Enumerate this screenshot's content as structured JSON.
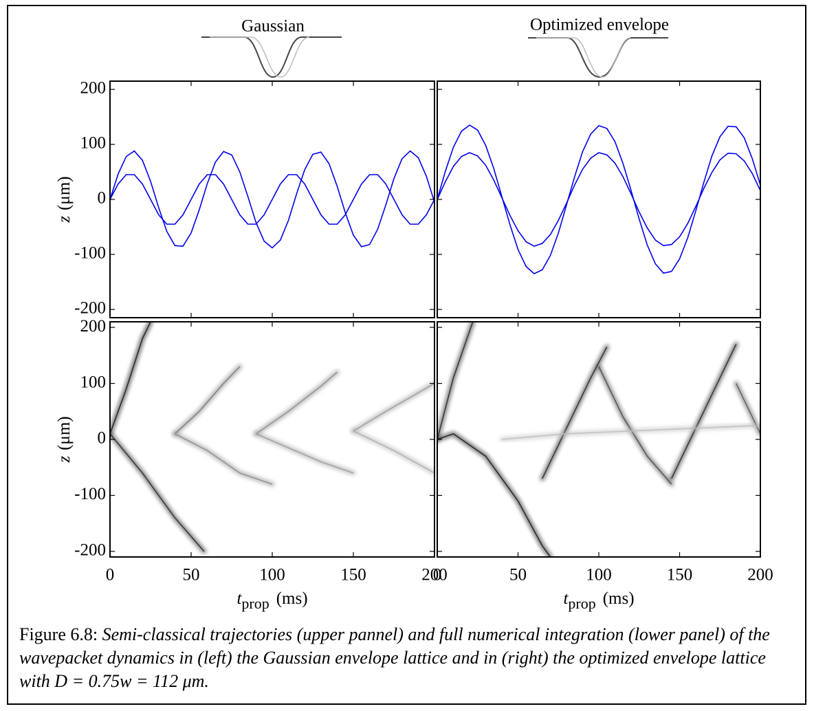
{
  "chart_data": [
    {
      "type": "line",
      "title": "Gaussian",
      "x": [
        0,
        5,
        10,
        15,
        20,
        25,
        30,
        35,
        40,
        45,
        50,
        55,
        60,
        65,
        70,
        75,
        80,
        85,
        90,
        95,
        100,
        105,
        110,
        115,
        120,
        125,
        130,
        135,
        140,
        145,
        150,
        155,
        160,
        165,
        170,
        175,
        180,
        185,
        190,
        195,
        200
      ],
      "series": [
        {
          "color": "#0000ee",
          "values": [
            0,
            46,
            78,
            88,
            71,
            33,
            -15,
            -58,
            -84,
            -85,
            -61,
            -19,
            29,
            68,
            87,
            81,
            50,
            5,
            -42,
            -76,
            -88,
            -74,
            -38,
            10,
            54,
            82,
            86,
            65,
            24,
            -24,
            -65,
            -86,
            -82,
            -54,
            -10,
            38,
            74,
            88,
            76,
            42,
            -5
          ]
        },
        {
          "color": "#0000ee",
          "values": [
            0,
            28,
            45,
            45,
            28,
            0,
            -28,
            -45,
            -45,
            -28,
            0,
            28,
            45,
            45,
            28,
            0,
            -28,
            -45,
            -45,
            -28,
            0,
            28,
            45,
            45,
            28,
            0,
            -28,
            -45,
            -45,
            -28,
            0,
            28,
            45,
            45,
            28,
            0,
            -28,
            -45,
            -45,
            -28,
            0
          ]
        }
      ],
      "xlim": [
        0,
        200
      ],
      "xticks": [
        0,
        50,
        100,
        150,
        200
      ],
      "xtick_labels": false,
      "ylim": [
        -215,
        215
      ],
      "yticks": [
        -200,
        -100,
        0,
        100,
        200
      ],
      "ytick_labels": true,
      "ylabel": {
        "var": "z",
        "unit": "(μm)"
      }
    },
    {
      "type": "line",
      "title": "Optimized envelope",
      "x": [
        0,
        5,
        10,
        15,
        20,
        25,
        30,
        35,
        40,
        45,
        50,
        55,
        60,
        65,
        70,
        75,
        80,
        85,
        90,
        95,
        100,
        105,
        110,
        115,
        120,
        125,
        130,
        135,
        140,
        145,
        150,
        155,
        160,
        165,
        170,
        175,
        180,
        185,
        190,
        195,
        200
      ],
      "series": [
        {
          "color": "#0000ee",
          "values": [
            0,
            51,
            95,
            124,
            135,
            126,
            98,
            56,
            5,
            -46,
            -91,
            -122,
            -135,
            -128,
            -102,
            -61,
            -10,
            41,
            87,
            119,
            134,
            129,
            105,
            65,
            16,
            -36,
            -83,
            -117,
            -134,
            -131,
            -108,
            -70,
            -21,
            31,
            79,
            114,
            133,
            132,
            112,
            74,
            26
          ]
        },
        {
          "color": "#0000ee",
          "values": [
            0,
            32,
            60,
            78,
            85,
            79,
            62,
            35,
            3,
            -29,
            -57,
            -77,
            -85,
            -80,
            -64,
            -38,
            -7,
            26,
            55,
            75,
            85,
            81,
            66,
            41,
            10,
            -23,
            -52,
            -74,
            -84,
            -82,
            -68,
            -44,
            -13,
            20,
            49,
            72,
            84,
            83,
            70,
            47,
            16
          ]
        }
      ],
      "xlim": [
        0,
        200
      ],
      "xticks": [
        0,
        50,
        100,
        150,
        200
      ],
      "xtick_labels": false,
      "ylim": [
        -215,
        215
      ],
      "yticks": [
        -200,
        -100,
        0,
        100,
        200
      ],
      "ytick_labels": false
    },
    {
      "type": "density",
      "series": [
        {
          "color": "#111111",
          "x": [
            0,
            10,
            20,
            25
          ],
          "values": [
            10,
            90,
            180,
            210
          ]
        },
        {
          "color": "#222222",
          "x": [
            0,
            20,
            40,
            58
          ],
          "values": [
            10,
            -60,
            -140,
            -200
          ]
        },
        {
          "color": "#777777",
          "x": [
            40,
            55,
            70,
            80
          ],
          "values": [
            10,
            50,
            100,
            130
          ]
        },
        {
          "color": "#888888",
          "x": [
            40,
            60,
            80,
            100
          ],
          "values": [
            10,
            -20,
            -60,
            -80
          ]
        },
        {
          "color": "#888888",
          "x": [
            90,
            110,
            130,
            140
          ],
          "values": [
            10,
            50,
            95,
            120
          ]
        },
        {
          "color": "#999999",
          "x": [
            90,
            110,
            130,
            150
          ],
          "values": [
            10,
            -15,
            -40,
            -60
          ]
        },
        {
          "color": "#999999",
          "x": [
            150,
            170,
            200
          ],
          "values": [
            15,
            50,
            100
          ]
        },
        {
          "color": "#aaaaaa",
          "x": [
            150,
            175,
            200
          ],
          "values": [
            15,
            -20,
            -60
          ]
        }
      ],
      "xlim": [
        0,
        200
      ],
      "xticks": [
        0,
        50,
        100,
        150,
        200
      ],
      "xtick_labels": true,
      "ylim": [
        -210,
        210
      ],
      "yticks": [
        -200,
        -100,
        0,
        100,
        200
      ],
      "ytick_labels": true,
      "xlabel": {
        "var": "t",
        "sub": "prop",
        "unit": "(ms)"
      },
      "ylabel": {
        "var": "z",
        "unit": "(μm)"
      }
    },
    {
      "type": "density",
      "series": [
        {
          "color": "#222222",
          "x": [
            0,
            10,
            22
          ],
          "values": [
            0,
            110,
            210
          ]
        },
        {
          "color": "#111111",
          "x": [
            0,
            10,
            30,
            50,
            65,
            70
          ],
          "values": [
            0,
            10,
            -30,
            -110,
            -190,
            -210
          ]
        },
        {
          "color": "#222222",
          "x": [
            65,
            80,
            95,
            105
          ],
          "values": [
            -70,
            20,
            110,
            165
          ]
        },
        {
          "color": "#444444",
          "x": [
            100,
            115,
            130,
            145
          ],
          "values": [
            130,
            40,
            -30,
            -80
          ]
        },
        {
          "color": "#222222",
          "x": [
            145,
            160,
            175,
            185
          ],
          "values": [
            -70,
            20,
            110,
            170
          ]
        },
        {
          "color": "#555555",
          "x": [
            185,
            195,
            200
          ],
          "values": [
            100,
            40,
            10
          ]
        },
        {
          "color": "#bbbbbb",
          "x": [
            40,
            80,
            120,
            160,
            200
          ],
          "values": [
            0,
            10,
            15,
            20,
            25
          ]
        }
      ],
      "xlim": [
        0,
        200
      ],
      "xticks": [
        0,
        50,
        100,
        150,
        200
      ],
      "xtick_labels": true,
      "ylim": [
        -210,
        210
      ],
      "yticks": [
        -200,
        -100,
        0,
        100,
        200
      ],
      "ytick_labels": false,
      "xlabel": {
        "var": "t",
        "sub": "prop",
        "unit": "(ms)"
      }
    }
  ],
  "caption": {
    "label": "Figure 6.8:",
    "text": "Semi-classical trajectories (upper pannel) and full numerical integration (lower panel) of the wavepacket dynamics in (left) the Gaussian envelope lattice and in (right) the optimized envelope lattice with D = 0.75w = 112 μm."
  }
}
